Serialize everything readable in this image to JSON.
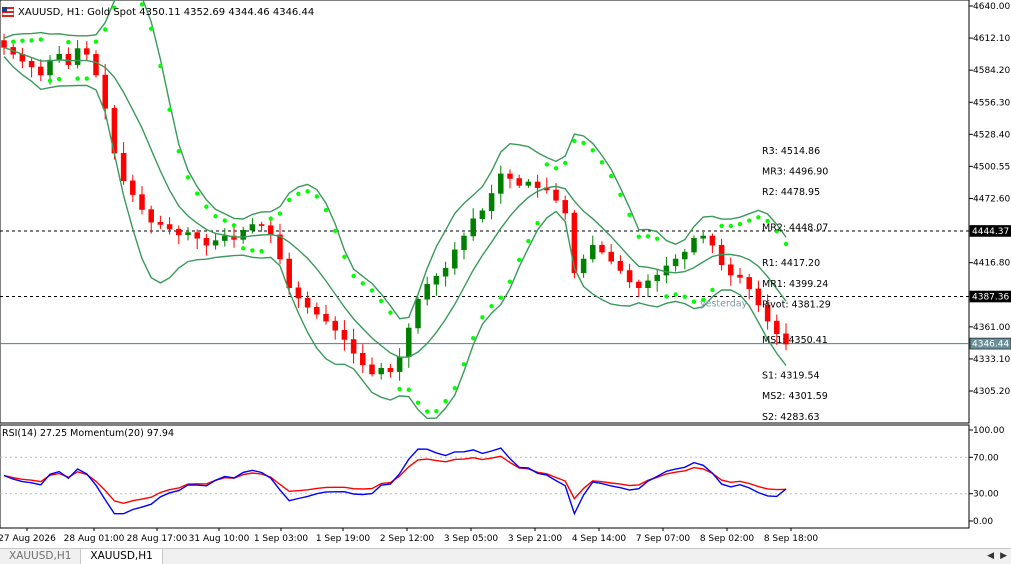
{
  "header": {
    "symbol": "XAUUSD",
    "timeframe": "H1",
    "description": "Gold Spot",
    "ohlc": "4350.11 4352.69 4344.46 4346.44",
    "full_text": "XAUUSD, H1:  Gold Spot  4350.11 4352.69 4344.46 4346.44"
  },
  "subwindow_header": "RSI(14) 27.25 Momentum(20) 97.94",
  "price_axis": [
    "4640.00",
    "4612.10",
    "4584.20",
    "4556.30",
    "4528.40",
    "4500.55",
    "4472.60",
    "4444.37",
    "4416.80",
    "4387.36",
    "4361.00",
    "4346.44",
    "4333.10",
    "4305.20"
  ],
  "price_axis_values": [
    4640.0,
    4612.1,
    4584.2,
    4556.3,
    4528.4,
    4500.55,
    4472.6,
    4444.37,
    4416.8,
    4387.36,
    4361.0,
    4346.44,
    4333.1,
    4305.2
  ],
  "price_tags": {
    "line1": "4444.37",
    "line2": "4387.36",
    "bid": "4346.44"
  },
  "osc_axis": [
    "100.00",
    "70.00",
    "30.00",
    "0.00"
  ],
  "osc_axis_values": [
    100,
    70,
    30,
    0
  ],
  "time_axis": [
    "27 Aug 2026",
    "28 Aug 01:00",
    "28 Aug 17:00",
    "31 Aug 10:00",
    "1 Sep 03:00",
    "1 Sep 19:00",
    "2 Sep 12:00",
    "3 Sep 05:00",
    "3 Sep 21:00",
    "4 Sep 14:00",
    "7 Sep 07:00",
    "8 Sep 02:00",
    "8 Sep 18:00"
  ],
  "pivot_labels": [
    {
      "text": "R3: 4514.86",
      "value": 4514.86
    },
    {
      "text": "MR3: 4496.90",
      "value": 4496.9
    },
    {
      "text": "R2: 4478.95",
      "value": 4478.95
    },
    {
      "text": "MR2: 4448.07",
      "value": 4448.07
    },
    {
      "text": "R1: 4417.20",
      "value": 4417.2
    },
    {
      "text": "MR1: 4399.24",
      "value": 4399.24
    },
    {
      "text": "Pivot: 4381.29",
      "value": 4381.29
    },
    {
      "text": "MS1: 4350.41",
      "value": 4350.41
    },
    {
      "text": "S1: 4319.54",
      "value": 4319.54
    },
    {
      "text": "MS2: 4301.59",
      "value": 4301.59
    },
    {
      "text": "S2: 4283.63",
      "value": 4283.63
    }
  ],
  "yesterday_label": "yesterday",
  "tabs": [
    {
      "label": "XAUUSD,H1",
      "active": false
    },
    {
      "label": "XAUUSD,H1",
      "active": true
    }
  ],
  "colors": {
    "bull": "#008000",
    "bear": "#ff0000",
    "bands": "#3a9a5a",
    "sar": "#00ff00",
    "rsi": "#0000ff",
    "momentum": "#ff0000",
    "hline": "#000000",
    "bid_line": "#4f7f8f",
    "bid_tag": "#6a8f9a"
  },
  "chart_data": {
    "type": "line",
    "title": "XAUUSD, H1: Gold Spot",
    "close": [
      4604,
      4598,
      4592,
      4587,
      4580,
      4593,
      4598,
      4589,
      4603,
      4598,
      4580,
      4551,
      4512,
      4488,
      4476,
      4463,
      4452,
      4450,
      4446,
      4441,
      4443,
      4438,
      4432,
      4436,
      4440,
      4437,
      4445,
      4450,
      4449,
      4441,
      4420,
      4395,
      4386,
      4378,
      4372,
      4366,
      4358,
      4350,
      4338,
      4328,
      4320,
      4325,
      4322,
      4335,
      4360,
      4385,
      4398,
      4405,
      4412,
      4428,
      4440,
      4455,
      4462,
      4477,
      4494,
      4490,
      4484,
      4487,
      4482,
      4480,
      4471,
      4460,
      4408,
      4420,
      4432,
      4426,
      4418,
      4410,
      4400,
      4395,
      4401,
      4406,
      4414,
      4420,
      4426,
      4438,
      4440,
      4432,
      4415,
      4406,
      4404,
      4394,
      4380,
      4366,
      4355,
      4346
    ],
    "rsi_end": 27.25,
    "momentum_end": 97.94,
    "ylim": [
      4295,
      4640
    ],
    "osc_ylim": [
      0,
      100
    ]
  }
}
